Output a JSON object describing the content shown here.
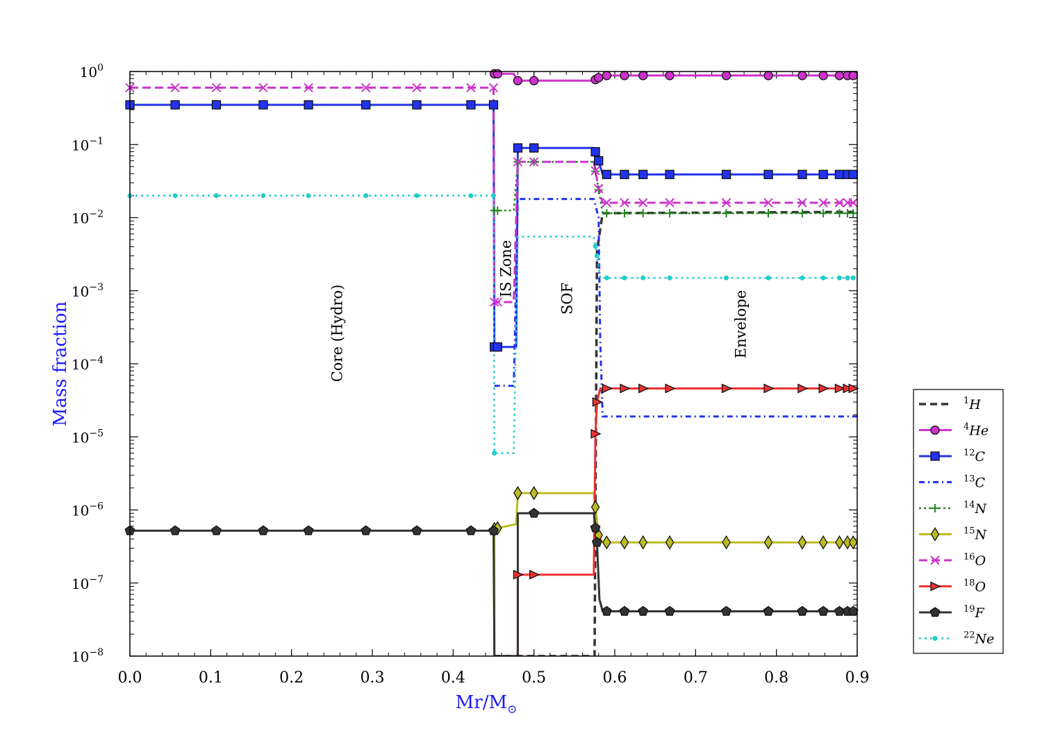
{
  "chart_data": {
    "type": "line",
    "xlabel": "Mr/M",
    "xlabel_subscript": "⊙",
    "ylabel": "Mass fraction",
    "label_color": "#1a1aff",
    "yscale": "log",
    "xlim": [
      0.0,
      0.9
    ],
    "ylim": [
      1e-08,
      1.0
    ],
    "xticks": [
      "0.0",
      "0.1",
      "0.2",
      "0.3",
      "0.4",
      "0.5",
      "0.6",
      "0.7",
      "0.8",
      "0.9"
    ],
    "ytick_exponents": [
      "-8",
      "-7",
      "-6",
      "-5",
      "-4",
      "-3",
      "-2",
      "-1",
      "0"
    ],
    "ytick_base": "10",
    "legend_position": "right",
    "region_labels": [
      "Core (Hydro)",
      "IS Zone",
      "SOF",
      "Envelope"
    ],
    "series": [
      {
        "isotope": "H",
        "mass_number": "1",
        "color": "#333333",
        "dash": "10,6",
        "marker": "none",
        "width": 3.5,
        "points": [
          [
            0.45,
            1e-08
          ],
          [
            0.451,
            1e-08
          ],
          [
            0.475,
            1e-08
          ],
          [
            0.48,
            1e-08
          ],
          [
            0.575,
            1e-08
          ],
          [
            0.578,
            0.0035
          ],
          [
            0.585,
            0.0115
          ],
          [
            0.9,
            0.012
          ]
        ]
      },
      {
        "isotope": "He",
        "mass_number": "4",
        "color": "#cc33cc",
        "dash": "",
        "marker": "circle",
        "width": 3,
        "points": [
          [
            0.451,
            0.93
          ],
          [
            0.455,
            0.93
          ],
          [
            0.475,
            0.93
          ],
          [
            0.48,
            0.75
          ],
          [
            0.5,
            0.75
          ],
          [
            0.574,
            0.75
          ],
          [
            0.578,
            0.8
          ],
          [
            0.585,
            0.88
          ],
          [
            0.9,
            0.88
          ]
        ],
        "marker_x": [
          0.451,
          0.455,
          0.48,
          0.5,
          0.576,
          0.58,
          0.59,
          0.612,
          0.635,
          0.668,
          0.738,
          0.79,
          0.832,
          0.858,
          0.878,
          0.888,
          0.895
        ]
      },
      {
        "isotope": "C",
        "mass_number": "12",
        "color": "#2233ee",
        "dash": "",
        "marker": "square",
        "width": 3,
        "points": [
          [
            0.0,
            0.35
          ],
          [
            0.45,
            0.35
          ],
          [
            0.451,
            0.00017
          ],
          [
            0.478,
            0.00017
          ],
          [
            0.48,
            0.09
          ],
          [
            0.574,
            0.09
          ],
          [
            0.577,
            0.075
          ],
          [
            0.58,
            0.06
          ],
          [
            0.585,
            0.039
          ],
          [
            0.9,
            0.039
          ]
        ],
        "marker_x": [
          0.0,
          0.056,
          0.107,
          0.165,
          0.221,
          0.292,
          0.355,
          0.422,
          0.45,
          0.451,
          0.455,
          0.48,
          0.5,
          0.576,
          0.58,
          0.59,
          0.612,
          0.635,
          0.668,
          0.738,
          0.79,
          0.832,
          0.858,
          0.878,
          0.888,
          0.895
        ]
      },
      {
        "isotope": "C",
        "mass_number": "13",
        "color": "#2233ee",
        "dash": "8,5,2,5",
        "marker": "none",
        "width": 3,
        "points": [
          [
            0.451,
            5e-05
          ],
          [
            0.475,
            5e-05
          ],
          [
            0.48,
            0.018
          ],
          [
            0.574,
            0.018
          ],
          [
            0.58,
            0.01
          ],
          [
            0.582,
            0.0002
          ],
          [
            0.585,
            1.9e-05
          ],
          [
            0.9,
            1.9e-05
          ]
        ]
      },
      {
        "isotope": "N",
        "mass_number": "14",
        "color": "#228822",
        "dash": "3,4",
        "marker": "plus",
        "width": 2.5,
        "points": [
          [
            0.451,
            0.0125
          ],
          [
            0.475,
            0.0125
          ],
          [
            0.48,
            0.058
          ],
          [
            0.574,
            0.058
          ],
          [
            0.585,
            0.0115
          ],
          [
            0.9,
            0.0115
          ]
        ],
        "marker_x": [
          0.451,
          0.455,
          0.48,
          0.5,
          0.576,
          0.58,
          0.59,
          0.612,
          0.635,
          0.668,
          0.738,
          0.79,
          0.832,
          0.858,
          0.878,
          0.888,
          0.895
        ]
      },
      {
        "isotope": "N",
        "mass_number": "15",
        "color": "#bbbb22",
        "dash": "",
        "marker": "diamond",
        "width": 3,
        "points": [
          [
            0.451,
            1e-08
          ],
          [
            0.451,
            5.5e-07
          ],
          [
            0.478,
            6.4e-07
          ],
          [
            0.48,
            1.7e-06
          ],
          [
            0.574,
            1.7e-06
          ],
          [
            0.58,
            4.5e-07
          ],
          [
            0.585,
            3.6e-07
          ],
          [
            0.9,
            3.6e-07
          ]
        ],
        "marker_x": [
          0.451,
          0.455,
          0.48,
          0.5,
          0.576,
          0.58,
          0.59,
          0.612,
          0.635,
          0.668,
          0.738,
          0.79,
          0.832,
          0.858,
          0.878,
          0.888,
          0.895
        ]
      },
      {
        "isotope": "O",
        "mass_number": "16",
        "color": "#cc33cc",
        "dash": "12,6",
        "marker": "x",
        "width": 3,
        "points": [
          [
            0.0,
            0.6
          ],
          [
            0.45,
            0.6
          ],
          [
            0.451,
            0.0007
          ],
          [
            0.475,
            0.0007
          ],
          [
            0.48,
            0.058
          ],
          [
            0.574,
            0.058
          ],
          [
            0.58,
            0.025
          ],
          [
            0.585,
            0.016
          ],
          [
            0.9,
            0.016
          ]
        ],
        "marker_x": [
          0.0,
          0.056,
          0.107,
          0.165,
          0.221,
          0.292,
          0.355,
          0.422,
          0.45,
          0.451,
          0.455,
          0.48,
          0.5,
          0.576,
          0.58,
          0.59,
          0.612,
          0.635,
          0.668,
          0.738,
          0.79,
          0.832,
          0.858,
          0.878,
          0.888,
          0.895
        ]
      },
      {
        "isotope": "O",
        "mass_number": "18",
        "color": "#ee3333",
        "dash": "",
        "marker": "triangle-right",
        "width": 3,
        "points": [
          [
            0.48,
            1e-08
          ],
          [
            0.48,
            1.3e-07
          ],
          [
            0.574,
            1.3e-07
          ],
          [
            0.576,
            1.1e-05
          ],
          [
            0.578,
            3e-05
          ],
          [
            0.582,
            4.6e-05
          ],
          [
            0.9,
            4.6e-05
          ]
        ],
        "marker_x": [
          0.48,
          0.5,
          0.576,
          0.578,
          0.59,
          0.612,
          0.635,
          0.668,
          0.738,
          0.79,
          0.832,
          0.858,
          0.878,
          0.888,
          0.895
        ]
      },
      {
        "isotope": "F",
        "mass_number": "19",
        "color": "#333333",
        "dash": "",
        "marker": "pentagon",
        "width": 3,
        "points": [
          [
            0.0,
            5.2e-07
          ],
          [
            0.45,
            5.2e-07
          ],
          [
            0.451,
            1e-08
          ],
          [
            0.48,
            1e-08
          ],
          [
            0.48,
            9e-07
          ],
          [
            0.574,
            9e-07
          ],
          [
            0.578,
            3.6e-07
          ],
          [
            0.581,
            6e-08
          ],
          [
            0.585,
            4.1e-08
          ],
          [
            0.9,
            4.1e-08
          ]
        ],
        "marker_x": [
          0.0,
          0.056,
          0.107,
          0.165,
          0.221,
          0.292,
          0.355,
          0.422,
          0.45,
          0.48,
          0.5,
          0.576,
          0.578,
          0.59,
          0.612,
          0.635,
          0.668,
          0.738,
          0.79,
          0.832,
          0.858,
          0.878,
          0.888,
          0.895
        ]
      },
      {
        "isotope": "Ne",
        "mass_number": "22",
        "color": "#22cccc",
        "dash": "3,5",
        "marker": "dot",
        "width": 2.5,
        "points": [
          [
            0.0,
            0.02
          ],
          [
            0.45,
            0.02
          ],
          [
            0.451,
            6e-06
          ],
          [
            0.475,
            6e-06
          ],
          [
            0.48,
            0.0055
          ],
          [
            0.574,
            0.0055
          ],
          [
            0.578,
            0.003
          ],
          [
            0.582,
            0.0015
          ],
          [
            0.9,
            0.0015
          ]
        ],
        "marker_x": [
          0.0,
          0.056,
          0.107,
          0.165,
          0.221,
          0.292,
          0.355,
          0.422,
          0.45,
          0.451,
          0.576,
          0.578,
          0.59,
          0.612,
          0.635,
          0.668,
          0.738,
          0.79,
          0.832,
          0.858,
          0.878,
          0.888,
          0.895
        ]
      }
    ]
  }
}
